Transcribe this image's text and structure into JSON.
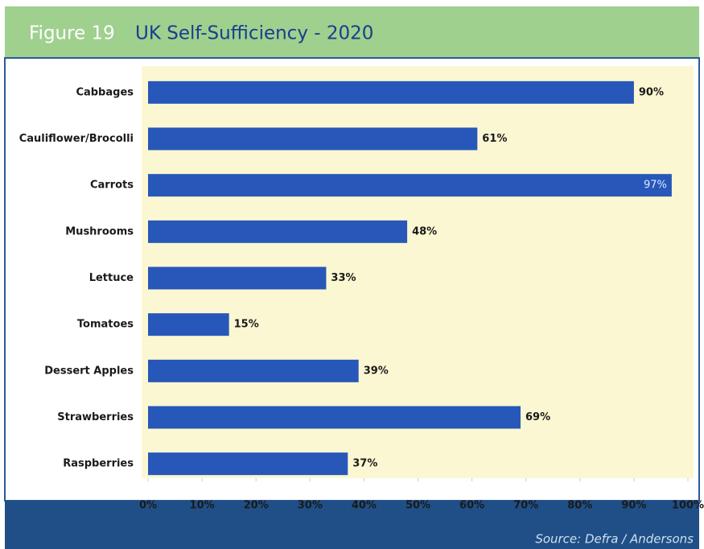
{
  "chart_data": {
    "type": "bar",
    "figure_label": "Figure 19",
    "title": "UK Self-Sufficiency - 2020",
    "categories": [
      "Cabbages",
      "Cauliflower/Brocolli",
      "Carrots",
      "Mushrooms",
      "Lettuce",
      "Tomatoes",
      "Dessert Apples",
      "Strawberries",
      "Raspberries"
    ],
    "values": [
      90,
      61,
      97,
      48,
      33,
      15,
      39,
      69,
      37
    ],
    "value_labels": [
      "90%",
      "61%",
      "97%",
      "48%",
      "33%",
      "15%",
      "39%",
      "69%",
      "37%"
    ],
    "color": "#2757b8",
    "xlim": [
      0,
      100
    ],
    "xticks": [
      {
        "value": 0,
        "label": "0%"
      },
      {
        "value": 10,
        "label": "10%"
      },
      {
        "value": 20,
        "label": "20%"
      },
      {
        "value": 30,
        "label": "30%"
      },
      {
        "value": 40,
        "label": "40%"
      },
      {
        "value": 50,
        "label": "50%"
      },
      {
        "value": 60,
        "label": "60%"
      },
      {
        "value": 70,
        "label": "70%"
      },
      {
        "value": 80,
        "label": "80%"
      },
      {
        "value": 90,
        "label": "90%"
      },
      {
        "value": 100,
        "label": "100%"
      }
    ],
    "source": "Source: Defra / Andersons"
  }
}
